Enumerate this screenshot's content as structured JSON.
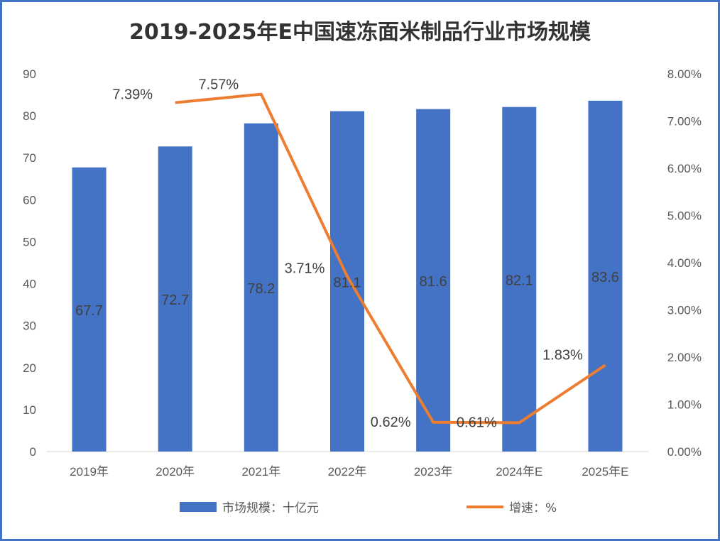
{
  "chart_data": {
    "type": "bar+line",
    "title": "2019-2025年E中国速冻面米制品行业市场规模",
    "categories": [
      "2019年",
      "2020年",
      "2021年",
      "2022年",
      "2023年",
      "2024年E",
      "2025年E"
    ],
    "series": [
      {
        "name": "市场规模：十亿元",
        "type": "bar",
        "axis": "left",
        "color": "#4472C4",
        "values": [
          67.7,
          72.7,
          78.2,
          81.1,
          81.6,
          82.1,
          83.6
        ],
        "labels": [
          "67.7",
          "72.7",
          "78.2",
          "81.1",
          "81.6",
          "82.1",
          "83.6"
        ]
      },
      {
        "name": "增速：%",
        "type": "line",
        "axis": "right",
        "color": "#ED7D31",
        "values": [
          null,
          7.39,
          7.57,
          3.71,
          0.62,
          0.61,
          1.83
        ],
        "labels": [
          "",
          "7.39%",
          "7.57%",
          "3.71%",
          "0.62%",
          "0.61%",
          "1.83%"
        ]
      }
    ],
    "y_left": {
      "min": 0,
      "max": 90,
      "ticks": [
        "0",
        "10",
        "20",
        "30",
        "40",
        "50",
        "60",
        "70",
        "80",
        "90"
      ]
    },
    "y_right": {
      "min": 0,
      "max": 8,
      "ticks": [
        "0.00%",
        "1.00%",
        "2.00%",
        "3.00%",
        "4.00%",
        "5.00%",
        "6.00%",
        "7.00%",
        "8.00%"
      ]
    },
    "grid": false,
    "legend": "bottom"
  }
}
